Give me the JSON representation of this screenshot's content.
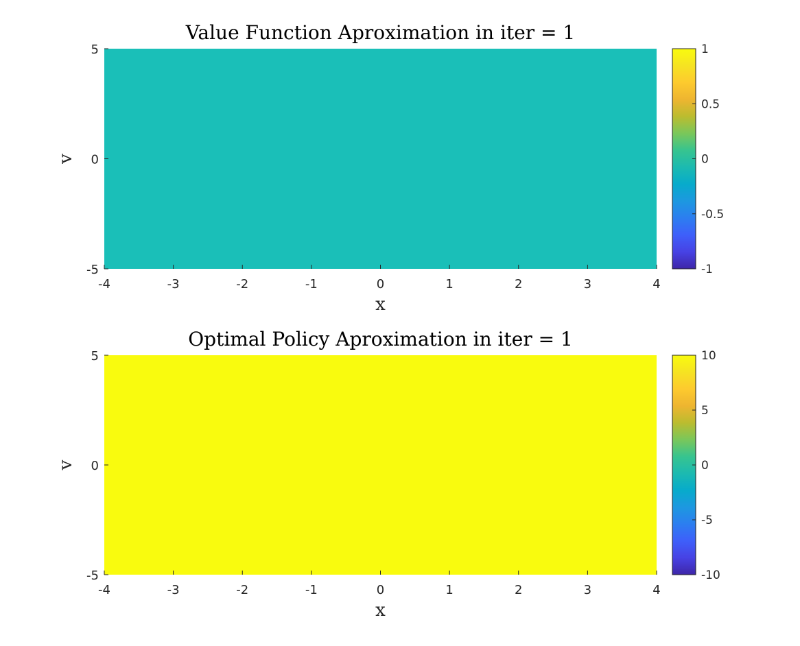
{
  "figure": {
    "background": "#ffffff"
  },
  "chart_data": [
    {
      "type": "heatmap",
      "title": "Value Function Aproximation in iter = 1",
      "xlabel": "x",
      "ylabel": "v",
      "xlim": [
        -4,
        4
      ],
      "ylim": [
        -5,
        5
      ],
      "x_ticks": [
        -4,
        -3,
        -2,
        -1,
        0,
        1,
        2,
        3,
        4
      ],
      "x_tick_labels": [
        "-4",
        "-3",
        "-2",
        "-1",
        "0",
        "1",
        "2",
        "3",
        "4"
      ],
      "y_ticks": [
        -5,
        0,
        5
      ],
      "y_tick_labels": [
        "-5",
        "0",
        "5"
      ],
      "value": 0,
      "fill_color": "#1ABFB8",
      "colorbar": {
        "limits": [
          -1,
          1
        ],
        "ticks": [
          -1,
          -0.5,
          0,
          0.5,
          1
        ],
        "tick_labels": [
          "-1",
          "-0.5",
          "0",
          "0.5",
          "1"
        ],
        "colormap": "parula"
      }
    },
    {
      "type": "heatmap",
      "title": "Optimal Policy Aproximation in iter = 1",
      "xlabel": "x",
      "ylabel": "v",
      "xlim": [
        -4,
        4
      ],
      "ylim": [
        -5,
        5
      ],
      "x_ticks": [
        -4,
        -3,
        -2,
        -1,
        0,
        1,
        2,
        3,
        4
      ],
      "x_tick_labels": [
        "-4",
        "-3",
        "-2",
        "-1",
        "0",
        "1",
        "2",
        "3",
        "4"
      ],
      "y_ticks": [
        -5,
        0,
        5
      ],
      "y_tick_labels": [
        "-5",
        "0",
        "5"
      ],
      "value": 10,
      "fill_color": "#F9FB0E",
      "colorbar": {
        "limits": [
          -10,
          10
        ],
        "ticks": [
          -10,
          -5,
          0,
          5,
          10
        ],
        "tick_labels": [
          "-10",
          "-5",
          "0",
          "5",
          "10"
        ],
        "colormap": "parula"
      }
    }
  ],
  "colormap_stops": [
    "#3E26A8",
    "#4742E4",
    "#3E5FFA",
    "#2C7EF0",
    "#1D98E0",
    "#07ABCB",
    "#1CBAB0",
    "#37C48F",
    "#7AC75A",
    "#BBBC2F",
    "#EEB530",
    "#FDCA2E",
    "#F6E322",
    "#F9FB0E"
  ]
}
